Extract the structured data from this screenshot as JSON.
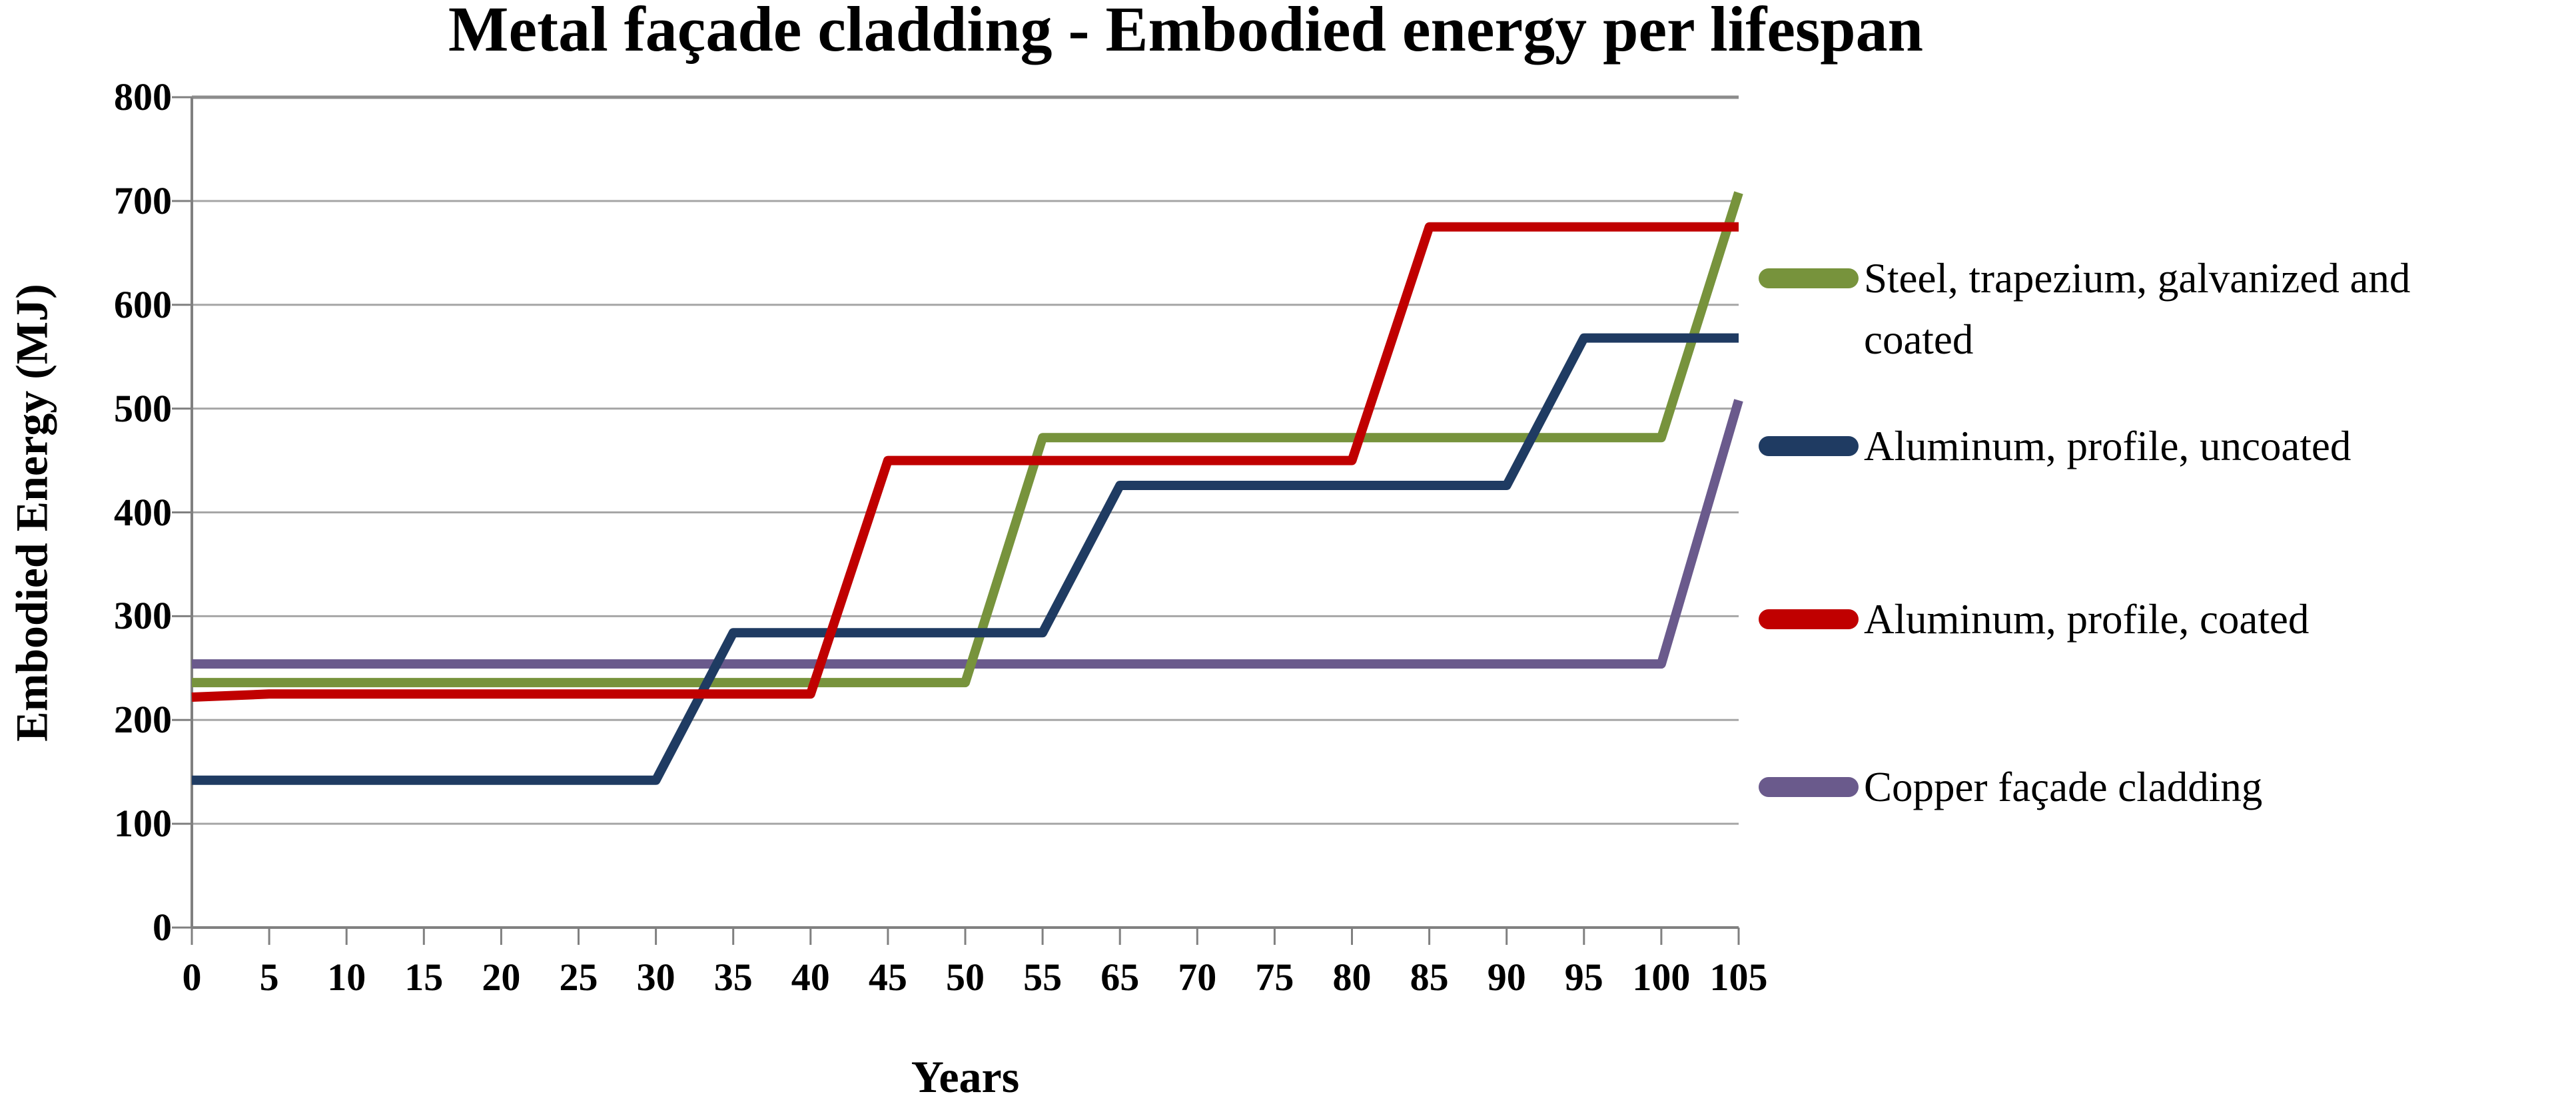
{
  "chart_data": {
    "type": "line",
    "title": "Metal façade cladding - Embodied energy per lifespan",
    "xlabel": "Years",
    "ylabel": "Embodied Energy (MJ)",
    "categories": [
      "0",
      "5",
      "10",
      "15",
      "20",
      "25",
      "30",
      "35",
      "40",
      "45",
      "50",
      "55",
      "65",
      "70",
      "75",
      "80",
      "85",
      "90",
      "95",
      "100",
      "105"
    ],
    "y_ticks": [
      0,
      100,
      200,
      300,
      400,
      500,
      600,
      700,
      800
    ],
    "ylim": [
      0,
      800
    ],
    "grid": "horizontal",
    "legend_position": "right",
    "series": [
      {
        "name": "Steel, trapezium, galvanized and coated",
        "color": "#77933C",
        "values": [
          236,
          236,
          236,
          236,
          236,
          236,
          236,
          236,
          236,
          236,
          236,
          472,
          472,
          472,
          472,
          472,
          472,
          472,
          472,
          472,
          708
        ]
      },
      {
        "name": "Aluminum, profile, uncoated",
        "color": "#1F3B62",
        "values": [
          142,
          142,
          142,
          142,
          142,
          142,
          142,
          284,
          284,
          284,
          284,
          284,
          426,
          426,
          426,
          426,
          426,
          426,
          568,
          568,
          568
        ]
      },
      {
        "name": "Aluminum, profile, coated",
        "color": "#C00000",
        "values": [
          222,
          225,
          225,
          225,
          225,
          225,
          225,
          225,
          225,
          450,
          450,
          450,
          450,
          450,
          450,
          450,
          675,
          675,
          675,
          675,
          675
        ]
      },
      {
        "name": "Copper façade cladding",
        "color": "#6A5A8C",
        "values": [
          254,
          254,
          254,
          254,
          254,
          254,
          254,
          254,
          254,
          254,
          254,
          254,
          254,
          254,
          254,
          254,
          254,
          254,
          254,
          254,
          508
        ]
      }
    ],
    "colors": {
      "gridline": "#A6A6A6",
      "top_gridline": "#8C8C8C",
      "axis": "#808080",
      "tick": "#808080",
      "text": "#000000"
    }
  }
}
